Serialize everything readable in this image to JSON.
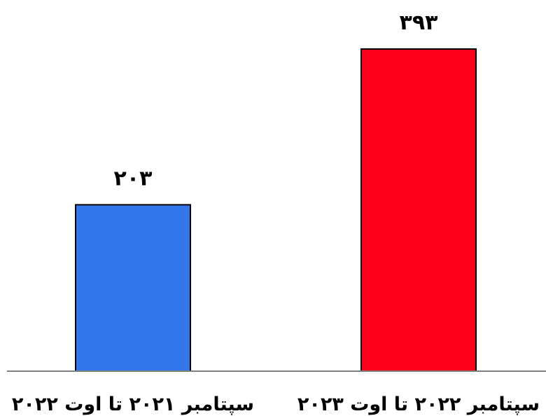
{
  "chart_data": {
    "type": "bar",
    "categories": [
      "سپتامبر ۲۰۲۱ تا اوت ۲۰۲۲",
      "سپتامبر ۲۰۲۲ تا اوت ۲۰۲۳"
    ],
    "values": [
      203,
      393
    ],
    "value_labels": [
      "۲۰۳",
      "۳۹۳"
    ],
    "colors": [
      "#3477eb",
      "#ff001a"
    ],
    "title": "",
    "xlabel": "",
    "ylabel": "",
    "ylim": [
      0,
      393
    ],
    "grid": false,
    "legend": "none"
  }
}
